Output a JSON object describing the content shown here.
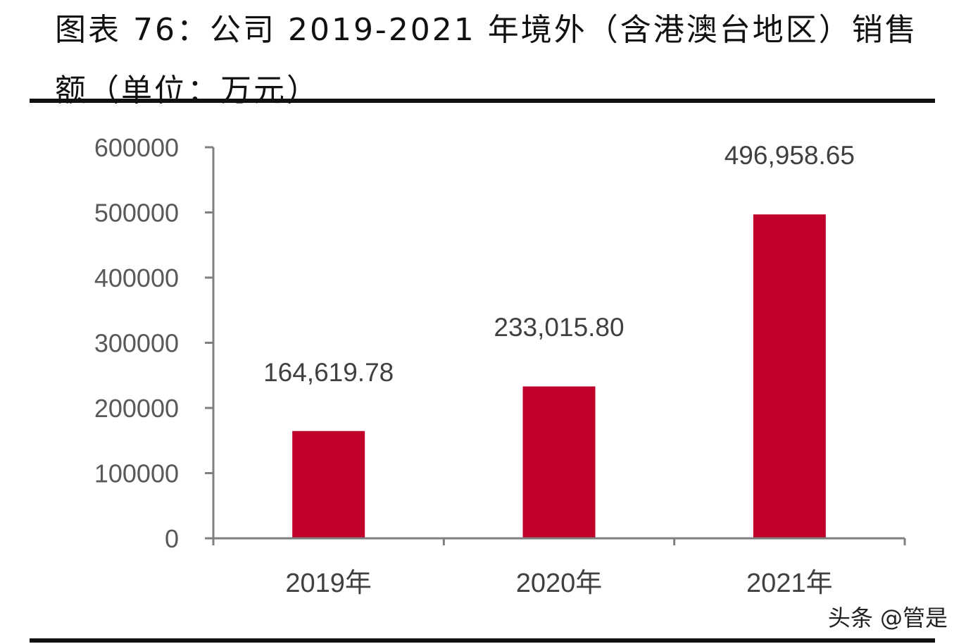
{
  "title": "图表 76：公司 2019-2021 年境外（含港澳台地区）销售额（单位：万元）",
  "watermark": "头条 @管是",
  "chart_data": {
    "type": "bar",
    "title": "图表 76：公司 2019-2021 年境外（含港澳台地区）销售额（单位：万元）",
    "categories": [
      "2019年",
      "2020年",
      "2021年"
    ],
    "values": [
      164619.78,
      233015.8,
      496958.65
    ],
    "data_labels": [
      "164,619.78",
      "233,015.80",
      "496,958.65"
    ],
    "xlabel": "",
    "ylabel": "",
    "ylim": [
      0,
      600000
    ],
    "yticks": [
      "0",
      "100000",
      "200000",
      "300000",
      "400000",
      "500000",
      "600000"
    ],
    "grid": false,
    "legend": "none",
    "bar_color": "#C0002A",
    "axis_color": "#7f7f7f"
  }
}
